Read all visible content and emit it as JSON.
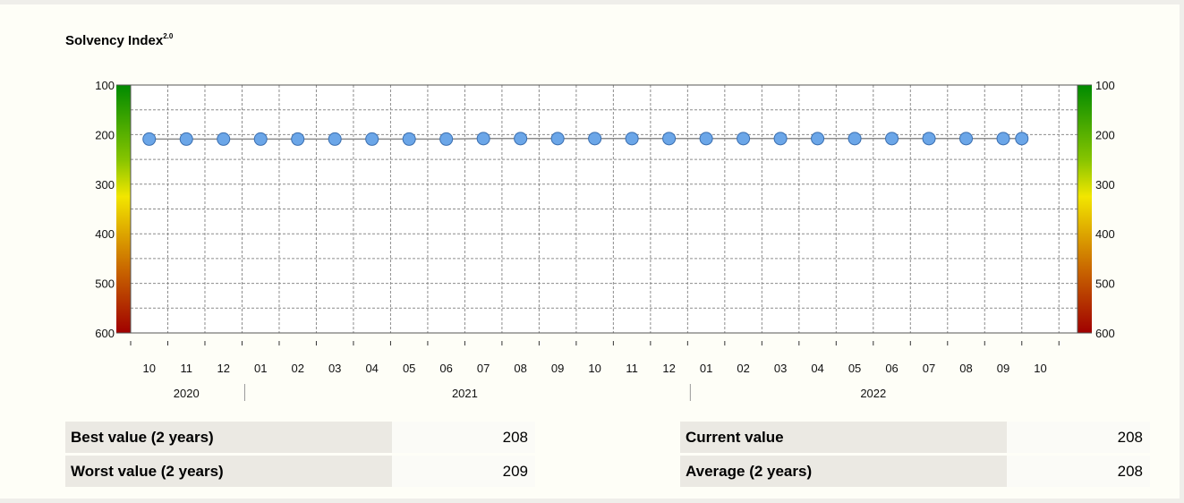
{
  "title": "Solvency Index",
  "title_sup": "2.0",
  "colors": {
    "scale_top": "#008a00",
    "scale_mid_high": "#86c400",
    "scale_mid": "#f2e600",
    "scale_mid_low": "#c86400",
    "scale_bottom": "#a00000",
    "marker_fill": "#6ba6e8",
    "marker_stroke": "#3b6fb0",
    "line": "#8c8c8c",
    "grid": "#8c8c8c"
  },
  "chart_data": {
    "type": "line",
    "title": "Solvency Index 2.0",
    "xlabel": "",
    "ylabel": "",
    "ylim": [
      600,
      100
    ],
    "y_reversed": true,
    "yticks": [
      100,
      200,
      300,
      400,
      500,
      600
    ],
    "yticks_right": [
      100,
      200,
      300,
      400,
      500,
      600
    ],
    "grid": true,
    "categories": [
      "10",
      "11",
      "12",
      "01",
      "02",
      "03",
      "04",
      "05",
      "06",
      "07",
      "08",
      "09",
      "10",
      "11",
      "12",
      "01",
      "02",
      "03",
      "04",
      "05",
      "06",
      "07",
      "08",
      "09",
      "10"
    ],
    "years": [
      {
        "label": "2020",
        "from": 0,
        "to": 2
      },
      {
        "label": "2021",
        "from": 3,
        "to": 14
      },
      {
        "label": "2022",
        "from": 15,
        "to": 24
      }
    ],
    "series": [
      {
        "x": [
          0.5,
          1.5,
          2.5,
          3.5,
          4.5,
          5.5,
          6.5,
          7.5,
          8.5,
          9.5,
          10.5,
          11.5,
          12.5,
          13.5,
          14.5,
          15.5,
          16.5,
          17.5,
          18.5,
          19.5,
          20.5,
          21.5,
          22.5,
          23.5,
          24.0
        ],
        "values": [
          209,
          209,
          209,
          209,
          209,
          209,
          209,
          209,
          209,
          208,
          208,
          208,
          208,
          208,
          208,
          208,
          208,
          208,
          208,
          208,
          208,
          208,
          208,
          208,
          208
        ]
      }
    ]
  },
  "stats": {
    "best_label": "Best value (2 years)",
    "best_value": "208",
    "worst_label": "Worst value (2 years)",
    "worst_value": "209",
    "current_label": "Current value",
    "current_value": "208",
    "average_label": "Average (2 years)",
    "average_value": "208"
  }
}
